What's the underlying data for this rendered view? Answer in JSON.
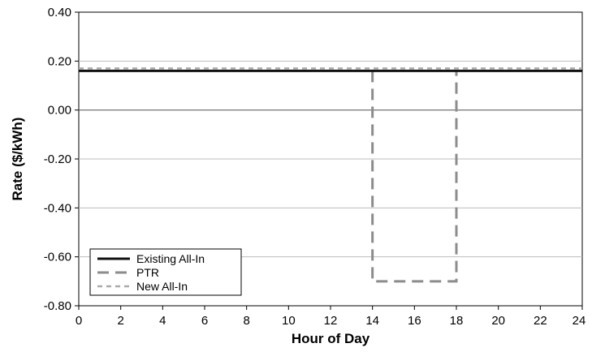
{
  "chart_data": {
    "type": "line",
    "title": "",
    "xlabel": "Hour of Day",
    "ylabel": "Rate ($/kWh)",
    "xlim": [
      0,
      24
    ],
    "ylim": [
      -0.8,
      0.4
    ],
    "x_ticks": [
      0,
      2,
      4,
      6,
      8,
      10,
      12,
      14,
      16,
      18,
      20,
      22,
      24
    ],
    "x_tick_labels": [
      "0",
      "2",
      "4",
      "6",
      "8",
      "10",
      "12",
      "14",
      "16",
      "18",
      "20",
      "22",
      "24"
    ],
    "y_ticks": [
      0.4,
      0.2,
      0.0,
      -0.2,
      -0.4,
      -0.6,
      -0.8
    ],
    "y_tick_labels": [
      "0.40",
      "0.20",
      "0.00",
      "-0.20",
      "-0.40",
      "-0.60",
      "-0.80"
    ],
    "grid": "horizontal",
    "legend_position": "bottom-left",
    "series": [
      {
        "name": "Existing All-In",
        "color": "#111111",
        "style": "solid",
        "x": [
          0,
          24
        ],
        "y": [
          0.16,
          0.16
        ]
      },
      {
        "name": "PTR",
        "color": "#8c8c8c",
        "style": "dashed",
        "x": [
          14,
          14,
          18,
          18
        ],
        "y": [
          0.16,
          -0.7,
          -0.7,
          0.16
        ]
      },
      {
        "name": "New All-In",
        "color": "#aaaaaa",
        "style": "dotted",
        "x": [
          0,
          24
        ],
        "y": [
          0.17,
          0.17
        ]
      }
    ]
  }
}
